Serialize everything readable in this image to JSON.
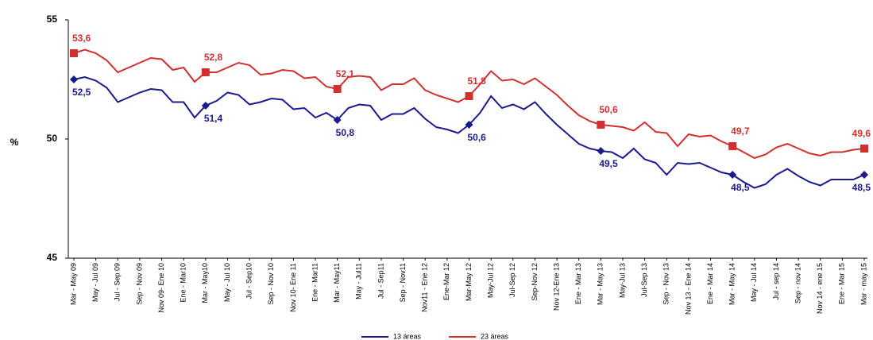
{
  "chart_data": {
    "type": "line",
    "y_label": "%",
    "categories": [
      "Mar - May 09",
      null,
      "May - Jul 09",
      null,
      "Jul - Sep 09",
      null,
      "Sep - Nov 09",
      null,
      "Nov 09- Ene 10",
      null,
      "Ene - Mar10",
      null,
      "Mar - May10",
      null,
      "May - Jul 10",
      null,
      "Jul - Sep10",
      null,
      "Sep - Nov 10",
      null,
      "Nov 10- Ene 11",
      null,
      "Ene - Mar11",
      null,
      "Mar - May11",
      null,
      "May - Jul11",
      null,
      "Jul - Sep11",
      null,
      "Sep - Nov11",
      null,
      "Nov11 - Ene 12",
      null,
      "Ene-Mar 12",
      null,
      "Mar-May 12",
      null,
      "May-Jul 12",
      null,
      "Jul-Sep 12",
      null,
      "Sep-Nov 12",
      null,
      "Nov 12-Ene 13",
      null,
      "Ene - Mar 13",
      null,
      "Mar - May 13",
      null,
      "May-Jul 13",
      null,
      "Jul-Sep 13",
      null,
      "Sep - Nov 13",
      null,
      "Nov 13 - Ene 14",
      null,
      "Ene - Mar 14",
      null,
      "Mar - May 14",
      null,
      "May - Jul 14",
      null,
      "Jul - sep 14",
      null,
      "Sep - nov 14",
      null,
      "Nov 14 - ene 15",
      null,
      "Ene - Mar 15",
      null,
      "Mar - may 15"
    ],
    "series": [
      {
        "name": "13 áreas",
        "color": "#1a1a8c",
        "marker": "diamond",
        "values": [
          52.5,
          52.6,
          52.45,
          52.15,
          51.55,
          51.75,
          51.95,
          52.1,
          52.05,
          51.55,
          51.55,
          50.9,
          51.4,
          51.6,
          51.95,
          51.85,
          51.45,
          51.55,
          51.7,
          51.65,
          51.25,
          51.3,
          50.9,
          51.1,
          50.8,
          51.3,
          51.45,
          51.4,
          50.8,
          51.05,
          51.05,
          51.3,
          50.85,
          50.5,
          50.4,
          50.25,
          50.6,
          51.1,
          51.8,
          51.3,
          51.45,
          51.25,
          51.55,
          51.05,
          50.6,
          50.2,
          49.8,
          49.6,
          49.5,
          49.45,
          49.2,
          49.6,
          49.15,
          49.0,
          48.5,
          49.0,
          48.95,
          49.0,
          48.8,
          48.6,
          48.5,
          48.2,
          47.95,
          48.1,
          48.5,
          48.75,
          48.45,
          48.2,
          48.05,
          48.3,
          48.3,
          48.3,
          48.5
        ],
        "value_labels": [
          "52,5",
          null,
          null,
          null,
          null,
          null,
          null,
          null,
          null,
          null,
          null,
          null,
          "51,4",
          null,
          null,
          null,
          null,
          null,
          null,
          null,
          null,
          null,
          null,
          null,
          "50,8",
          null,
          null,
          null,
          null,
          null,
          null,
          null,
          null,
          null,
          null,
          null,
          "50,6",
          null,
          null,
          null,
          null,
          null,
          null,
          null,
          null,
          null,
          null,
          null,
          "49,5",
          null,
          null,
          null,
          null,
          null,
          null,
          null,
          null,
          null,
          null,
          null,
          "48,5",
          null,
          null,
          null,
          null,
          null,
          null,
          null,
          null,
          null,
          null,
          null,
          "48,5"
        ]
      },
      {
        "name": "23 áreas",
        "color": "#d03030",
        "marker": "square",
        "values": [
          53.6,
          53.75,
          53.6,
          53.3,
          52.8,
          53.0,
          53.2,
          53.4,
          53.35,
          52.9,
          53.0,
          52.4,
          52.8,
          52.8,
          53.0,
          53.2,
          53.1,
          52.7,
          52.75,
          52.9,
          52.85,
          52.55,
          52.6,
          52.2,
          52.1,
          52.6,
          52.65,
          52.6,
          52.05,
          52.3,
          52.3,
          52.55,
          52.05,
          51.85,
          51.7,
          51.55,
          51.8,
          52.3,
          52.85,
          52.45,
          52.5,
          52.3,
          52.55,
          52.2,
          51.85,
          51.4,
          51.0,
          50.75,
          50.6,
          50.55,
          50.5,
          50.35,
          50.7,
          50.3,
          50.25,
          49.7,
          50.2,
          50.1,
          50.15,
          49.9,
          49.7,
          49.45,
          49.2,
          49.35,
          49.65,
          49.8,
          49.6,
          49.4,
          49.3,
          49.45,
          49.45,
          49.55,
          49.6
        ],
        "value_labels": [
          "53,6",
          null,
          null,
          null,
          null,
          null,
          null,
          null,
          null,
          null,
          null,
          null,
          "52,8",
          null,
          null,
          null,
          null,
          null,
          null,
          null,
          null,
          null,
          null,
          null,
          "52,1",
          null,
          null,
          null,
          null,
          null,
          null,
          null,
          null,
          null,
          null,
          null,
          "51,8",
          null,
          null,
          null,
          null,
          null,
          null,
          null,
          null,
          null,
          null,
          null,
          "50,6",
          null,
          null,
          null,
          null,
          null,
          null,
          null,
          null,
          null,
          null,
          null,
          "49,7",
          null,
          null,
          null,
          null,
          null,
          null,
          null,
          null,
          null,
          null,
          null,
          "49,6"
        ]
      }
    ],
    "ylim": [
      45,
      55
    ],
    "yticks": [
      45,
      50,
      55
    ],
    "grid": false
  }
}
